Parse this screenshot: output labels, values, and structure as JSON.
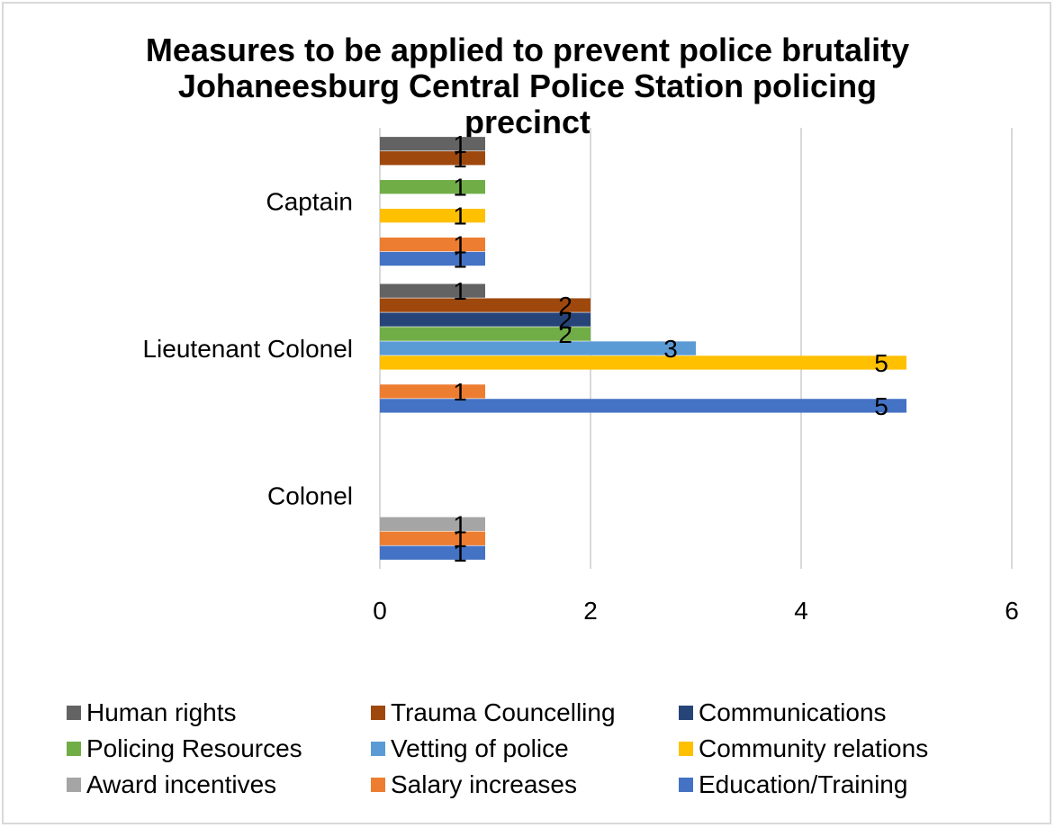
{
  "chart_data": {
    "type": "bar",
    "orientation": "horizontal",
    "title_lines": [
      "Measures to be applied to prevent police brutality",
      "Johaneesburg Central Police Station policing",
      "precinct"
    ],
    "categories": [
      "Colonel",
      "Lieutenant Colonel",
      "Captain"
    ],
    "xlim": [
      0,
      6
    ],
    "x_ticks": [
      "0",
      "2",
      "4",
      "6"
    ],
    "grid": "vertical",
    "legend_position": "bottom",
    "series": [
      {
        "name": "Education/Training",
        "color": "#4472C4",
        "values": [
          1,
          5,
          1
        ]
      },
      {
        "name": "Salary increases",
        "color": "#ED7D31",
        "values": [
          1,
          1,
          1
        ]
      },
      {
        "name": "Award incentives",
        "color": "#A5A5A5",
        "values": [
          1,
          null,
          null
        ]
      },
      {
        "name": "Community relations",
        "color": "#FFC000",
        "values": [
          null,
          5,
          1
        ]
      },
      {
        "name": "Vetting of police",
        "color": "#5B9BD5",
        "values": [
          null,
          3,
          null
        ]
      },
      {
        "name": "Policing Resources",
        "color": "#70AD47",
        "values": [
          null,
          2,
          1
        ]
      },
      {
        "name": "Communications",
        "color": "#264478",
        "values": [
          null,
          2,
          null
        ]
      },
      {
        "name": "Trauma Councelling",
        "color": "#9E480E",
        "values": [
          null,
          2,
          1
        ]
      },
      {
        "name": "Human rights",
        "color": "#636363",
        "values": [
          null,
          1,
          1
        ]
      }
    ],
    "legend_order": [
      "Human rights",
      "Trauma Councelling",
      "Communications",
      "Policing Resources",
      "Vetting of police",
      "Community relations",
      "Award incentives",
      "Salary increases",
      "Education/Training"
    ]
  }
}
